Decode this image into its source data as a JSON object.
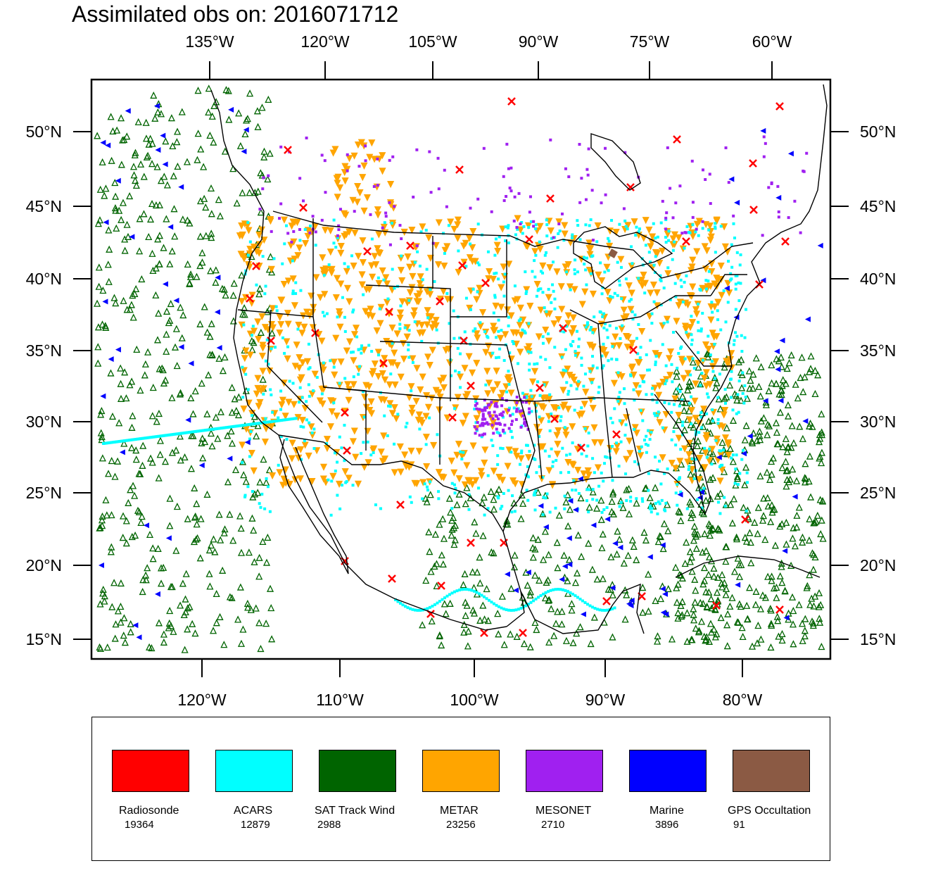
{
  "title": "Assimilated obs on: 2016071712",
  "top_lon_labels": [
    "135°W",
    "120°W",
    "105°W",
    "90°W",
    "75°W",
    "60°W"
  ],
  "bottom_lon_labels": [
    "120°W",
    "110°W",
    "100°W",
    "90°W",
    "80°W"
  ],
  "lat_labels": [
    "50°N",
    "45°N",
    "40°N",
    "35°N",
    "30°N",
    "25°N",
    "20°N",
    "15°N"
  ],
  "legend": [
    {
      "label": "Radiosonde",
      "count": "19364",
      "color": "#ff0000"
    },
    {
      "label": "ACARS",
      "count": "12879",
      "color": "#00ffff"
    },
    {
      "label": "SAT Track Wind",
      "count": "2988",
      "color": "#006400"
    },
    {
      "label": "METAR",
      "count": "23256",
      "color": "#ffa500"
    },
    {
      "label": "MESONET",
      "count": "2710",
      "color": "#a020f0"
    },
    {
      "label": "Marine",
      "count": "3896",
      "color": "#0000ff"
    },
    {
      "label": "GPS Occultation",
      "count": "91",
      "color": "#8b5a44"
    }
  ]
}
